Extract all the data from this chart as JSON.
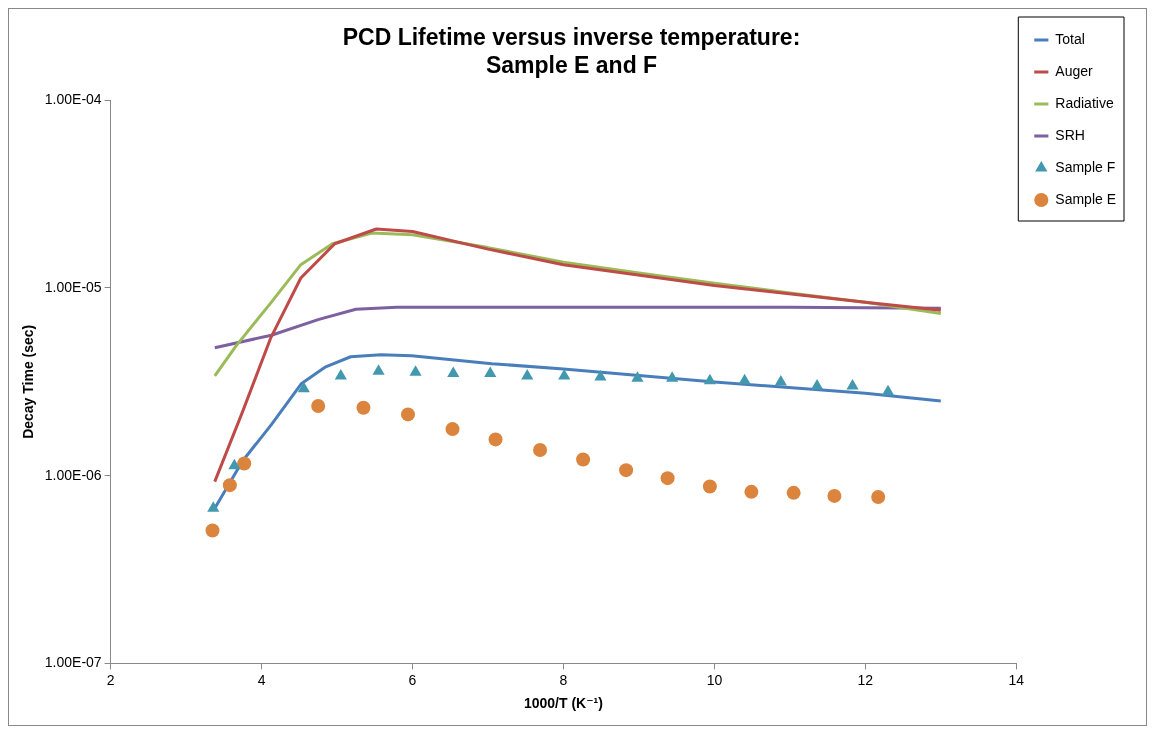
{
  "chart_data": {
    "type": "line",
    "title": "PCD Lifetime versus inverse temperature:\nSample E and F",
    "xlabel": "1000/T (K⁻¹)",
    "ylabel": "Decay Time (sec)",
    "log": "y",
    "grid": false,
    "legend": "top right",
    "line_style": "solid",
    "marker": "none",
    "xlim": [
      2,
      14
    ],
    "xticks": [
      2,
      4,
      6,
      8,
      10,
      12,
      14
    ],
    "ylim": [
      1e-07,
      0.0001
    ],
    "yticks": [
      {
        "value": 1e-07,
        "label": "1.00E-07"
      },
      {
        "value": 1e-06,
        "label": "1.00E-06"
      },
      {
        "value": 1e-05,
        "label": "1.00E-05"
      },
      {
        "value": 0.0001,
        "label": "1.00E-04"
      }
    ],
    "series": [
      {
        "name": "Total",
        "type": "line",
        "color": "#4a7ebb",
        "x": [
          3.38,
          3.75,
          4.13,
          4.53,
          4.85,
          5.18,
          5.58,
          5.99,
          7.05,
          8,
          10,
          12,
          13
        ],
        "values": [
          6.7e-07,
          1.2e-06,
          1.87e-06,
          3.1e-06,
          3.8e-06,
          4.3e-06,
          4.4e-06,
          4.35e-06,
          3.95e-06,
          3.7e-06,
          3.15e-06,
          2.75e-06,
          2.5e-06
        ]
      },
      {
        "name": "Auger",
        "type": "line",
        "color": "#be4b48",
        "x": [
          3.38,
          3.75,
          4.12,
          4.52,
          4.97,
          5.52,
          6,
          7,
          8,
          10,
          12,
          13
        ],
        "values": [
          9.3e-07,
          2.2e-06,
          5.4e-06,
          1.13e-05,
          1.72e-05,
          2.06e-05,
          2e-05,
          1.61e-05,
          1.33e-05,
          1.03e-05,
          8.4e-06,
          7.6e-06
        ]
      },
      {
        "name": "Radiative",
        "type": "line",
        "color": "#9bbb59",
        "x": [
          3.38,
          3.66,
          4.12,
          4.52,
          4.94,
          5.46,
          6,
          7,
          8,
          9,
          10,
          11,
          12,
          13
        ],
        "values": [
          3.4e-06,
          4.9e-06,
          8.3e-06,
          1.33e-05,
          1.72e-05,
          1.96e-05,
          1.92e-05,
          1.64e-05,
          1.37e-05,
          1.2e-05,
          1.06e-05,
          9.4e-06,
          8.4e-06,
          7.3e-06
        ]
      },
      {
        "name": "SRH",
        "type": "line",
        "color": "#7d60a0",
        "x": [
          3.38,
          4.13,
          4.76,
          5.25,
          5.79,
          7,
          9,
          11,
          13
        ],
        "values": [
          4.8e-06,
          5.6e-06,
          6.8e-06,
          7.7e-06,
          7.9e-06,
          7.9e-06,
          7.9e-06,
          7.9e-06,
          7.8e-06
        ]
      },
      {
        "name": "Sample F",
        "type": "scatter",
        "marker": "triangle",
        "color": "#4198af",
        "x": [
          3.36,
          3.64,
          4.56,
          5.05,
          5.55,
          6.04,
          6.54,
          7.03,
          7.52,
          8.01,
          8.49,
          8.98,
          9.44,
          9.94,
          10.4,
          10.88,
          11.36,
          11.83,
          12.3
        ],
        "values": [
          6.7e-07,
          1.13e-06,
          2.9e-06,
          3.4e-06,
          3.6e-06,
          3.55e-06,
          3.5e-06,
          3.5e-06,
          3.4e-06,
          3.4e-06,
          3.35e-06,
          3.3e-06,
          3.3e-06,
          3.2e-06,
          3.2e-06,
          3.15e-06,
          3e-06,
          3e-06,
          2.8e-06
        ]
      },
      {
        "name": "Sample E",
        "type": "scatter",
        "marker": "circle",
        "color": "#db843d",
        "x": [
          3.35,
          3.58,
          3.77,
          4.75,
          5.35,
          5.94,
          6.53,
          7.1,
          7.69,
          8.26,
          8.83,
          9.38,
          9.94,
          10.49,
          11.05,
          11.59,
          12.17
        ],
        "values": [
          5.1e-07,
          8.9e-07,
          1.16e-06,
          2.35e-06,
          2.3e-06,
          2.12e-06,
          1.77e-06,
          1.56e-06,
          1.37e-06,
          1.22e-06,
          1.07e-06,
          9.7e-07,
          8.75e-07,
          8.2e-07,
          8.1e-07,
          7.8e-07,
          7.7e-07
        ]
      }
    ]
  }
}
